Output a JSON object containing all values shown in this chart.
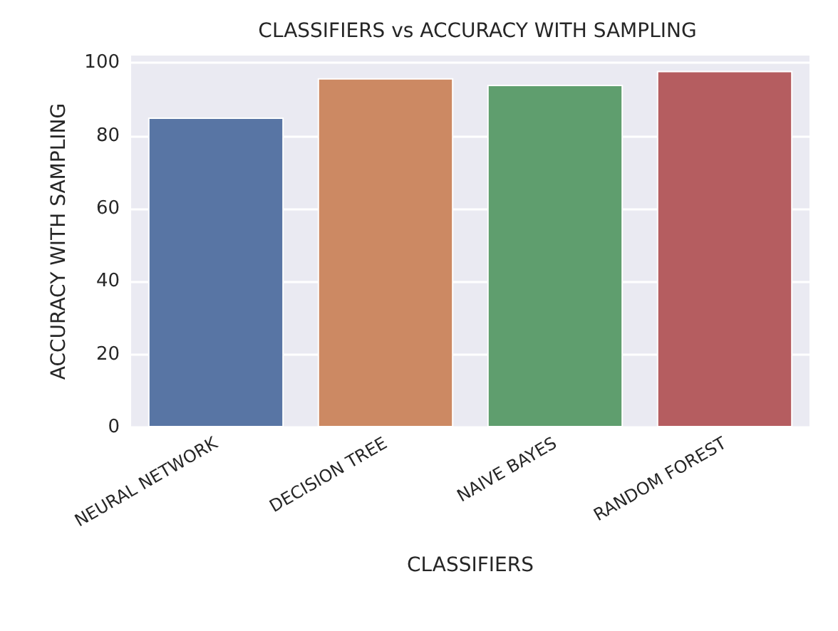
{
  "chart_data": {
    "type": "bar",
    "title": "CLASSIFIERS vs ACCURACY WITH SAMPLING",
    "xlabel": "CLASSIFIERS",
    "ylabel": "ACCURACY WITH SAMPLING",
    "categories": [
      "NEURAL NETWORK",
      "DECISION TREE",
      "NAIVE BAYES",
      "RANDOM FOREST"
    ],
    "values": [
      85.0,
      95.8,
      94.0,
      97.8
    ],
    "colors": [
      "#5875a4",
      "#cc8963",
      "#5f9e6e",
      "#b55d60"
    ],
    "ylim": [
      0,
      102
    ],
    "yticks": [
      0,
      20,
      40,
      60,
      80,
      100
    ],
    "grid": "y"
  }
}
